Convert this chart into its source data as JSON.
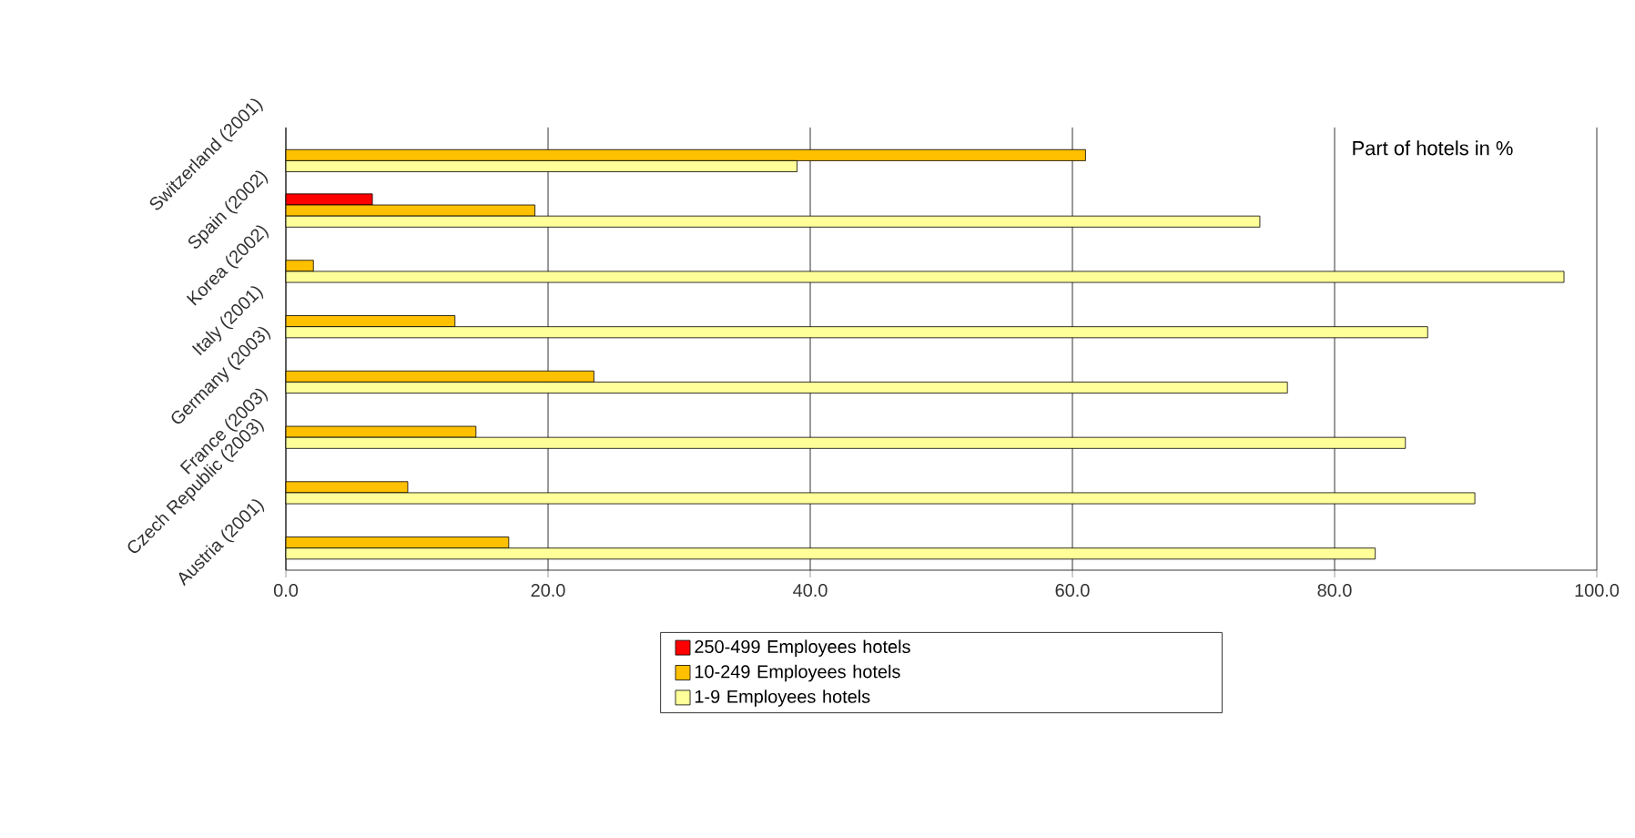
{
  "chart_data": {
    "type": "bar",
    "orientation": "horizontal",
    "xlabel": "Part of hotels in %",
    "categories": [
      "Switzerland (2001)",
      "Spain (2002)",
      "Korea (2002)",
      "Italy (2001)",
      "Germany (2003)",
      "France (2003)",
      "Czech Republic (2003)",
      "Austria (2001)"
    ],
    "series": [
      {
        "name": "250-499 Employees hotels",
        "color": "#ff0000",
        "values": [
          null,
          6.6,
          null,
          null,
          null,
          null,
          null,
          null
        ]
      },
      {
        "name": "10-249 Employees hotels",
        "color": "#ffc000",
        "values": [
          61.0,
          19.0,
          2.1,
          12.9,
          23.5,
          14.5,
          9.3,
          17.0
        ]
      },
      {
        "name": "1-9 Employees hotels",
        "color": "#ffff99",
        "values": [
          39.0,
          74.3,
          97.5,
          87.1,
          76.4,
          85.4,
          90.7,
          83.1
        ]
      }
    ],
    "xlim": [
      0,
      100
    ],
    "xticks": [
      {
        "value": 0,
        "label": "0.0"
      },
      {
        "value": 20,
        "label": "20.0"
      },
      {
        "value": 40,
        "label": "40.0"
      },
      {
        "value": 60,
        "label": "60.0"
      },
      {
        "value": 80,
        "label": "80.0"
      },
      {
        "value": 100,
        "label": "100.0"
      }
    ],
    "grid": "x",
    "legend": "bottom"
  }
}
